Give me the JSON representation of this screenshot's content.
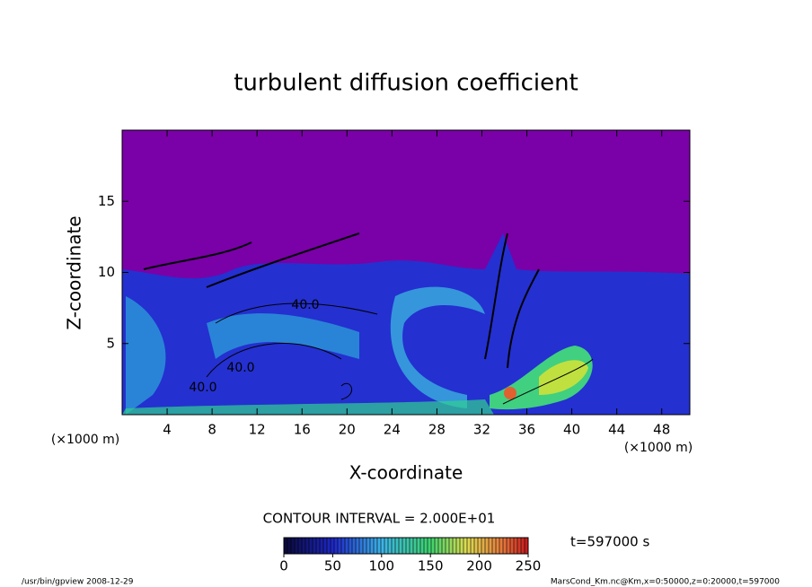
{
  "chart_data": {
    "type": "contour",
    "title": "turbulent diffusion coefficient",
    "x_label": "X-coordinate",
    "y_label": "Z-coordinate",
    "x_unit": "(×1000 m)",
    "y_unit": "(×1000 m)",
    "xlim": [
      0,
      50.5
    ],
    "xticks": [
      4,
      8,
      12,
      16,
      20,
      24,
      28,
      32,
      36,
      40,
      44,
      48
    ],
    "ylim": [
      0,
      20
    ],
    "yticks": [
      5,
      10,
      15
    ],
    "contour_labels": [
      "40.0",
      "40.0",
      "40.0"
    ],
    "contour_interval": "CONTOUR INTERVAL = 2.000E+01",
    "time_label": "t=597000 s",
    "colorbar": {
      "lim": [
        0,
        250
      ],
      "ticks": [
        0,
        50,
        100,
        150,
        200,
        250
      ]
    },
    "footer_left": "/usr/bin/gpview  2008-12-29",
    "footer_right": "MarsCond_Km.nc@Km,x=0:50000,z=0:20000,t=597000"
  }
}
